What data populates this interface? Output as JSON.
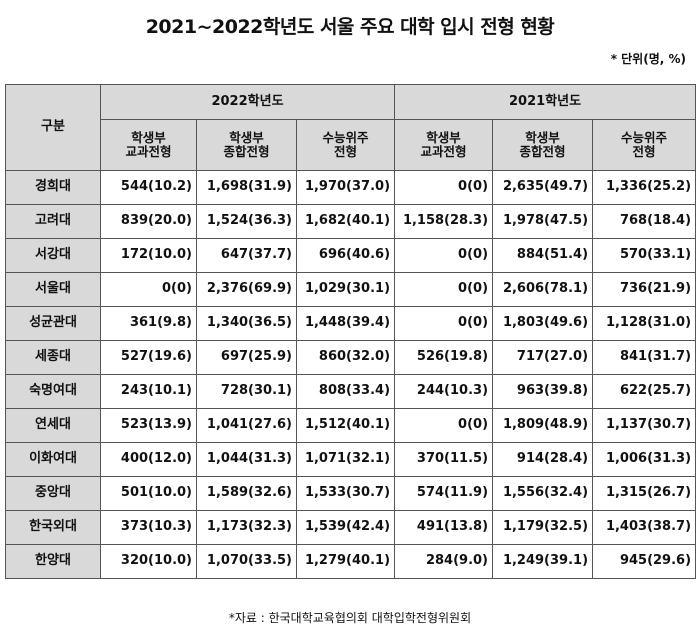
{
  "title": "2021~2022학년도 서울 주요 대학 입시 전형 현황",
  "unit": "* 단위(명, %)",
  "table": {
    "corner": "구분",
    "year_headers": [
      "2022학년도",
      "2021학년도"
    ],
    "col_headers": [
      [
        "학생부",
        "교과전형"
      ],
      [
        "학생부",
        "종합전형"
      ],
      [
        "수능위주",
        "전형"
      ],
      [
        "학생부",
        "교과전형"
      ],
      [
        "학생부",
        "종합전형"
      ],
      [
        "수능위주",
        "전형"
      ]
    ],
    "rows": [
      {
        "name": "경희대",
        "cells": [
          "544(10.2)",
          "1,698(31.9)",
          "1,970(37.0)",
          "0(0)",
          "2,635(49.7)",
          "1,336(25.2)"
        ]
      },
      {
        "name": "고려대",
        "cells": [
          "839(20.0)",
          "1,524(36.3)",
          "1,682(40.1)",
          "1,158(28.3)",
          "1,978(47.5)",
          "768(18.4)"
        ]
      },
      {
        "name": "서강대",
        "cells": [
          "172(10.0)",
          "647(37.7)",
          "696(40.6)",
          "0(0)",
          "884(51.4)",
          "570(33.1)"
        ]
      },
      {
        "name": "서울대",
        "cells": [
          "0(0)",
          "2,376(69.9)",
          "1,029(30.1)",
          "0(0)",
          "2,606(78.1)",
          "736(21.9)"
        ]
      },
      {
        "name": "성균관대",
        "cells": [
          "361(9.8)",
          "1,340(36.5)",
          "1,448(39.4)",
          "0(0)",
          "1,803(49.6)",
          "1,128(31.0)"
        ]
      },
      {
        "name": "세종대",
        "cells": [
          "527(19.6)",
          "697(25.9)",
          "860(32.0)",
          "526(19.8)",
          "717(27.0)",
          "841(31.7)"
        ]
      },
      {
        "name": "숙명여대",
        "cells": [
          "243(10.1)",
          "728(30.1)",
          "808(33.4)",
          "244(10.3)",
          "963(39.8)",
          "622(25.7)"
        ]
      },
      {
        "name": "연세대",
        "cells": [
          "523(13.9)",
          "1,041(27.6)",
          "1,512(40.1)",
          "0(0)",
          "1,809(48.9)",
          "1,137(30.7)"
        ]
      },
      {
        "name": "이화여대",
        "cells": [
          "400(12.0)",
          "1,044(31.3)",
          "1,071(32.1)",
          "370(11.5)",
          "914(28.4)",
          "1,006(31.3)"
        ]
      },
      {
        "name": "중앙대",
        "cells": [
          "501(10.0)",
          "1,589(32.6)",
          "1,533(30.7)",
          "574(11.9)",
          "1,556(32.4)",
          "1,315(26.7)"
        ]
      },
      {
        "name": "한국외대",
        "cells": [
          "373(10.3)",
          "1,173(32.3)",
          "1,539(42.4)",
          "491(13.8)",
          "1,179(32.5)",
          "1,403(38.7)"
        ]
      },
      {
        "name": "한양대",
        "cells": [
          "320(10.0)",
          "1,070(33.5)",
          "1,279(40.1)",
          "284(9.0)",
          "1,249(39.1)",
          "945(29.6)"
        ]
      }
    ]
  },
  "source": "*자료 : 한국대학교육협의회 대학입학전형위원회"
}
